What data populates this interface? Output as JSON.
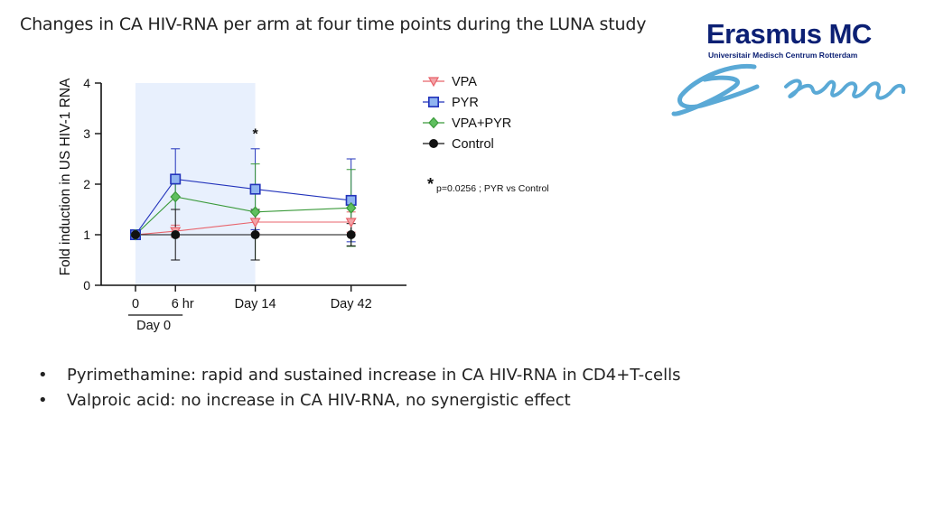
{
  "slide": {
    "title": "Changes in CA HIV-RNA per arm at four time points during the LUNA study",
    "bullets": [
      "Pyrimethamine: rapid and sustained increase in CA HIV-RNA in CD4+T-cells",
      "Valproic acid: no increase in CA HIV-RNA, no synergistic effect"
    ]
  },
  "logo": {
    "name": "Erasmus MC",
    "subtitle": "Universitair Medisch Centrum Rotterdam",
    "brand_color": "#0c2074",
    "wave_color": "#5aa9d6"
  },
  "chart_data": {
    "type": "line",
    "title": "",
    "ylabel": "Fold induction in US HIV-1 RNA",
    "xlabel": "",
    "ylim": [
      0,
      4
    ],
    "yticks": [
      0,
      1,
      2,
      3,
      4
    ],
    "x_ticks": [
      {
        "x": 0,
        "label": "0"
      },
      {
        "x": 1,
        "label": "6 hr"
      },
      {
        "x": 3,
        "label": "Day 14"
      },
      {
        "x": 5.4,
        "label": "Day 42"
      }
    ],
    "x_group_label": {
      "label": "Day 0",
      "from": 0,
      "to": 1
    },
    "shaded_region": {
      "from": 0,
      "to": 3,
      "color": "#e8f0fd"
    },
    "significance": {
      "x": 3,
      "marker": "*",
      "note": "p=0.0256 ; PYR vs Control"
    },
    "series": [
      {
        "name": "VPA",
        "color": "#e8636b",
        "marker": "triangle-down",
        "x": [
          0,
          1,
          3,
          5.4
        ],
        "values": [
          1.0,
          1.07,
          1.25,
          1.25
        ],
        "err": [
          0,
          0.12,
          0.22,
          0.2
        ]
      },
      {
        "name": "PYR",
        "color": "#2233bb",
        "marker": "square",
        "x": [
          0,
          1,
          3,
          5.4
        ],
        "values": [
          1.0,
          2.1,
          1.9,
          1.68
        ],
        "err": [
          0,
          0.6,
          0.8,
          0.82
        ]
      },
      {
        "name": "VPA+PYR",
        "color": "#3a9a3a",
        "marker": "diamond",
        "x": [
          0,
          1,
          3,
          5.4
        ],
        "values": [
          1.0,
          1.75,
          1.45,
          1.53
        ],
        "err": [
          0,
          0.25,
          0.95,
          0.76
        ]
      },
      {
        "name": "Control",
        "color": "#111111",
        "marker": "circle",
        "x": [
          0,
          1,
          3,
          5.4
        ],
        "values": [
          1.0,
          1.0,
          1.0,
          1.0
        ],
        "err": [
          0,
          0.5,
          0.5,
          0.22
        ]
      }
    ]
  }
}
